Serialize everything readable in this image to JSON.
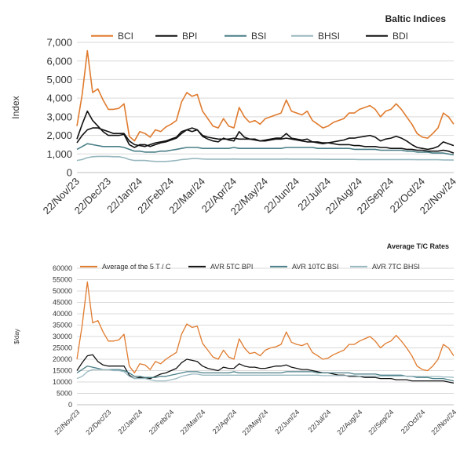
{
  "chart_data": [
    {
      "type": "line",
      "title": "Baltic Indices",
      "ylabel": "Index",
      "xlabel": "",
      "ylim": [
        0,
        7000
      ],
      "y_ticks": [
        "0",
        "1,000",
        "2,000",
        "3,000",
        "4,000",
        "5,000",
        "6,000",
        "7,000"
      ],
      "x_ticks": [
        "22/Nov/23",
        "22/Dec/23",
        "22/Jan/24",
        "22/Feb/24",
        "22/Mar/24",
        "22/Apr/24",
        "22/May/24",
        "22/Jun/24",
        "22/Jul/24",
        "22/Aug/24",
        "22/Sep/24",
        "22/Oct/24",
        "22/Nov/24"
      ],
      "legend_position": "top",
      "grid": "horizontal",
      "series": [
        {
          "name": "BCI",
          "color": "#e07b2e",
          "values": [
            2500,
            4200,
            6550,
            4300,
            4500,
            3900,
            3400,
            3400,
            3450,
            3700,
            1950,
            1700,
            2200,
            2100,
            1900,
            2300,
            2200,
            2450,
            2600,
            2800,
            3800,
            4300,
            4100,
            4200,
            3300,
            2900,
            2500,
            2400,
            2900,
            2500,
            2400,
            3500,
            3000,
            2700,
            2800,
            2600,
            2900,
            3000,
            3100,
            3200,
            3900,
            3300,
            3200,
            3100,
            3300,
            2800,
            2600,
            2400,
            2500,
            2700,
            2800,
            2900,
            3200,
            3200,
            3400,
            3500,
            3600,
            3400,
            3000,
            3300,
            3400,
            3700,
            3400,
            3000,
            2600,
            2100,
            1900,
            1850,
            2100,
            2400,
            3200,
            3000,
            2600
          ]
        },
        {
          "name": "BPI",
          "color": "#111111",
          "values": [
            1600,
            2000,
            2300,
            2400,
            2400,
            2300,
            2200,
            2100,
            2100,
            2100,
            1700,
            1500,
            1450,
            1400,
            1500,
            1600,
            1650,
            1700,
            1800,
            1900,
            2200,
            2300,
            2400,
            2300,
            2000,
            1900,
            1850,
            1800,
            1800,
            1800,
            1850,
            1800,
            1800,
            1800,
            1750,
            1700,
            1700,
            1750,
            1800,
            1800,
            1850,
            1800,
            1750,
            1700,
            1650,
            1650,
            1650,
            1600,
            1600,
            1550,
            1500,
            1500,
            1500,
            1450,
            1450,
            1400,
            1400,
            1400,
            1350,
            1350,
            1300,
            1300,
            1300,
            1250,
            1250,
            1200,
            1200,
            1150,
            1150,
            1150,
            1200,
            1150,
            1050
          ]
        },
        {
          "name": "BSI",
          "color": "#4a7f87",
          "values": [
            1250,
            1400,
            1550,
            1500,
            1450,
            1400,
            1400,
            1400,
            1400,
            1350,
            1250,
            1150,
            1150,
            1100,
            1100,
            1100,
            1150,
            1150,
            1200,
            1250,
            1300,
            1350,
            1350,
            1350,
            1300,
            1300,
            1300,
            1300,
            1300,
            1300,
            1350,
            1300,
            1300,
            1300,
            1300,
            1300,
            1300,
            1300,
            1300,
            1300,
            1350,
            1350,
            1350,
            1350,
            1350,
            1350,
            1300,
            1300,
            1300,
            1300,
            1300,
            1300,
            1300,
            1250,
            1250,
            1250,
            1250,
            1250,
            1200,
            1200,
            1200,
            1200,
            1200,
            1150,
            1150,
            1100,
            1100,
            1100,
            1050,
            1050,
            1050,
            1000,
            950
          ]
        },
        {
          "name": "BHSI",
          "color": "#98b8bf",
          "values": [
            650,
            700,
            800,
            850,
            870,
            870,
            870,
            850,
            850,
            800,
            700,
            650,
            650,
            650,
            620,
            600,
            600,
            600,
            620,
            650,
            700,
            720,
            750,
            750,
            730,
            720,
            720,
            720,
            720,
            720,
            730,
            720,
            720,
            720,
            720,
            720,
            720,
            720,
            720,
            720,
            730,
            720,
            720,
            720,
            720,
            720,
            720,
            710,
            710,
            710,
            710,
            710,
            710,
            710,
            700,
            700,
            700,
            700,
            700,
            700,
            700,
            700,
            700,
            700,
            700,
            690,
            690,
            690,
            690,
            690,
            680,
            680,
            670
          ]
        },
        {
          "name": "BDI",
          "color": "#111111",
          "values": [
            1800,
            2600,
            3300,
            2800,
            2500,
            2200,
            2000,
            2000,
            2000,
            2050,
            1500,
            1350,
            1500,
            1500,
            1400,
            1500,
            1600,
            1650,
            1750,
            1850,
            2100,
            2300,
            2200,
            2300,
            1950,
            1800,
            1700,
            1650,
            1850,
            1750,
            1700,
            2200,
            1900,
            1800,
            1800,
            1700,
            1750,
            1800,
            1850,
            1850,
            2100,
            1850,
            1800,
            1750,
            1800,
            1650,
            1600,
            1550,
            1600,
            1650,
            1700,
            1750,
            1850,
            1850,
            1900,
            1950,
            2000,
            1900,
            1700,
            1800,
            1850,
            1950,
            1850,
            1700,
            1500,
            1350,
            1300,
            1250,
            1300,
            1400,
            1650,
            1550,
            1450
          ]
        }
      ]
    },
    {
      "type": "line",
      "title": "Average T/C Rates",
      "ylabel": "$/day",
      "xlabel": "",
      "ylim": [
        0,
        60000
      ],
      "y_ticks": [
        "0",
        "5000",
        "10000",
        "15000",
        "20000",
        "25000",
        "30000",
        "35000",
        "40000",
        "45000",
        "50000",
        "55000",
        "60000"
      ],
      "x_ticks": [
        "22/Nov/23",
        "22/Dec/23",
        "22/Jan/24",
        "22/Feb/24",
        "22/Mar/24",
        "22/Apr/24",
        "22/May/24",
        "22/Jun/24",
        "22/Jul/24",
        "22/Aug/24",
        "22/Sep/24",
        "22/Oct/24",
        "22/Nov/24"
      ],
      "legend_position": "top",
      "grid": "horizontal",
      "series": [
        {
          "name": "Average of the 5 T / C",
          "color": "#e07b2e",
          "values": [
            20000,
            35000,
            54000,
            36000,
            37000,
            32000,
            28000,
            28000,
            28500,
            31000,
            17000,
            14000,
            18000,
            17500,
            15500,
            19000,
            18000,
            20000,
            21500,
            23000,
            31000,
            35500,
            34000,
            34500,
            27000,
            24000,
            21000,
            20000,
            24000,
            21000,
            20000,
            29000,
            25000,
            22500,
            23000,
            21500,
            24000,
            25000,
            25500,
            26500,
            32000,
            27500,
            26500,
            26000,
            27000,
            23000,
            21500,
            20000,
            20500,
            22000,
            23000,
            24000,
            26500,
            26500,
            28000,
            29000,
            30000,
            28000,
            25000,
            27000,
            28000,
            30500,
            28000,
            25000,
            21500,
            17000,
            15500,
            15000,
            17000,
            20000,
            26500,
            25000,
            21500
          ]
        },
        {
          "name": "AVR 5TC BPI",
          "color": "#111111",
          "values": [
            15000,
            18500,
            21500,
            22000,
            19000,
            17500,
            17000,
            17000,
            17000,
            17000,
            13000,
            11500,
            12000,
            12000,
            11500,
            12500,
            13500,
            14000,
            15000,
            16000,
            18500,
            20000,
            19500,
            19000,
            17000,
            16000,
            15500,
            15000,
            16500,
            16000,
            16000,
            18000,
            17000,
            16500,
            16500,
            16000,
            16000,
            16500,
            17000,
            17000,
            17500,
            16500,
            16000,
            15500,
            15500,
            15000,
            14500,
            14000,
            14000,
            13500,
            13000,
            13000,
            12500,
            12500,
            12500,
            12000,
            12000,
            12000,
            11500,
            11500,
            11500,
            11000,
            11000,
            11000,
            10500,
            10500,
            10500,
            10500,
            10500,
            10500,
            10500,
            10000,
            9500
          ]
        },
        {
          "name": "AVR 10TC BSI",
          "color": "#4a7f87",
          "values": [
            14000,
            15500,
            17000,
            16500,
            16000,
            15500,
            15500,
            15500,
            15500,
            15000,
            14000,
            12500,
            12500,
            12000,
            12000,
            12000,
            12500,
            12500,
            13000,
            13500,
            14000,
            14500,
            14500,
            14500,
            14000,
            14000,
            14000,
            14000,
            14000,
            14000,
            14500,
            14000,
            14000,
            14000,
            14000,
            14000,
            14000,
            14000,
            14000,
            14000,
            14500,
            14500,
            14500,
            14500,
            14500,
            14500,
            14000,
            14000,
            14000,
            14000,
            14000,
            14000,
            14000,
            13500,
            13500,
            13500,
            13500,
            13500,
            13000,
            13000,
            13000,
            13000,
            13000,
            12500,
            12500,
            12000,
            12000,
            12000,
            11500,
            11500,
            11500,
            11000,
            10500
          ]
        },
        {
          "name": "AVR 7TC BHSI",
          "color": "#98b8bf",
          "values": [
            11500,
            12500,
            14500,
            15500,
            15500,
            15500,
            15500,
            15000,
            15000,
            14500,
            12500,
            11500,
            11500,
            11500,
            11000,
            10500,
            10500,
            10500,
            11000,
            11500,
            12500,
            13000,
            13500,
            13500,
            13000,
            13000,
            13000,
            13000,
            13000,
            13000,
            13000,
            13000,
            13000,
            13000,
            13000,
            13000,
            13000,
            13000,
            13000,
            13000,
            13000,
            13000,
            13000,
            13000,
            13000,
            13000,
            13000,
            12800,
            12800,
            12800,
            12800,
            12800,
            12800,
            12800,
            12600,
            12600,
            12600,
            12600,
            12600,
            12600,
            12600,
            12600,
            12600,
            12600,
            12600,
            12400,
            12400,
            12400,
            12400,
            12400,
            12200,
            12200,
            12000
          ]
        }
      ]
    }
  ]
}
